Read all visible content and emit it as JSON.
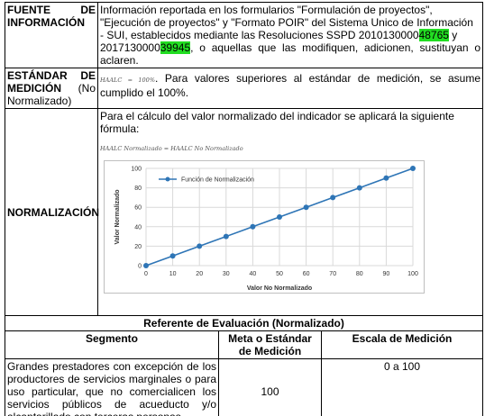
{
  "rows": {
    "fuente": {
      "label_word1": "FUENTE",
      "label_word2": "DE",
      "label_line2": "INFORMACIÓN",
      "text_lines": [
        "Información reportada en los formularios \"Formulación de proyectos\",",
        "\"Ejecución de proyectos\" y \"Formato POIR\" del Sistema Unico de Información",
        "- SUI, establecidos mediante las Resoluciones SSPD 2010130000",
        "2017130000"
      ],
      "highlight1": "48765",
      "mid_text": " y",
      "highlight2": "39945",
      "tail_text": ", o aquellas que las modifiquen, adicionen, sustituyan o aclaren."
    },
    "estandar": {
      "label_word1": "ESTÁNDAR",
      "label_word2": "DE",
      "label_line2a": "MEDICIÓN",
      "label_line2b": "(No",
      "label_line3": "Normalizado)",
      "formula": "HAALC = 100%",
      "text": ". Para valores superiores al estándar de medición, se asume cumplido el 100%."
    },
    "normalizacion": {
      "label": "NORMALIZACIÓN",
      "intro": "Para el cálculo del valor normalizado del indicador se aplicará la siguiente fórmula:",
      "formula": "HAALC Normalizado = HAALC No Normalizado"
    }
  },
  "referente": {
    "title": "Referente de Evaluación (Normalizado)",
    "headers": [
      "Segmento",
      "Meta o Estándar de Medición",
      "Escala de Medición"
    ],
    "segment_text": "Grandes prestadores con excepción de los productores de servicios marginales o para uso particular, que no comercialicen los servicios públicos de acueducto y/o alcantarillado con terceras personas.",
    "meta": "100",
    "escala": "0 a 100"
  },
  "chart_data": {
    "type": "line",
    "series": [
      {
        "name": "Función de Normalización",
        "x": [
          0,
          10,
          20,
          30,
          40,
          50,
          60,
          70,
          80,
          90,
          100
        ],
        "y": [
          0,
          10,
          20,
          30,
          40,
          50,
          60,
          70,
          80,
          90,
          100
        ]
      }
    ],
    "xlabel": "Valor No Normalizado",
    "ylabel": "Valor Normalizado",
    "xlim": [
      0,
      100
    ],
    "ylim": [
      0,
      100
    ],
    "xticks": [
      0,
      10,
      20,
      30,
      40,
      50,
      60,
      70,
      80,
      90,
      100
    ],
    "yticks": [
      0,
      20,
      40,
      60,
      80,
      100
    ],
    "grid": true,
    "legend": "top-left",
    "color": "#2e75b6"
  }
}
